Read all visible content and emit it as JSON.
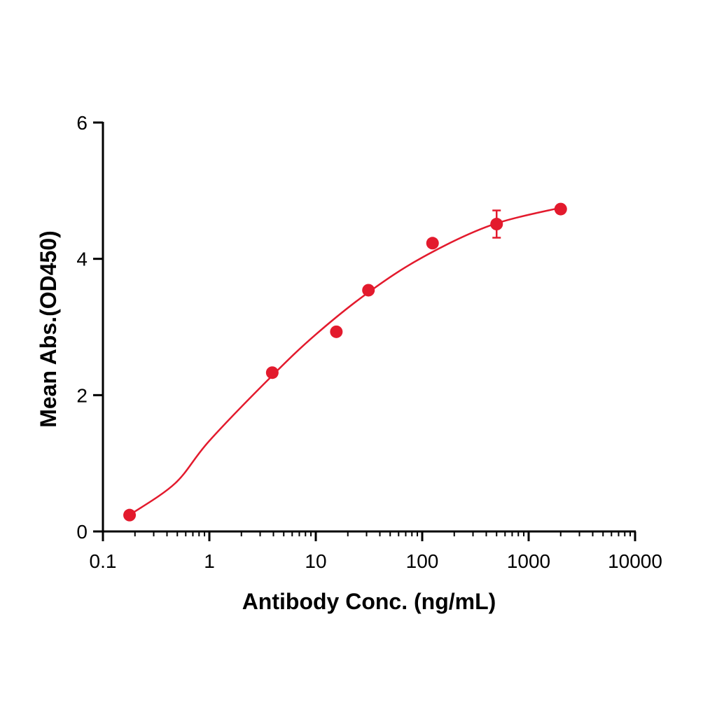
{
  "chart_data": {
    "type": "scatter",
    "title": "",
    "xlabel": "Antibody Conc. (ng/mL)",
    "ylabel": "Mean Abs.(OD450)",
    "xscale": "log",
    "xlim": [
      0.1,
      10000
    ],
    "ylim": [
      0,
      6
    ],
    "xticks": [
      "0.1",
      "1",
      "10",
      "100",
      "1000",
      "10000"
    ],
    "xtick_values": [
      0.1,
      1,
      10,
      100,
      1000,
      10000
    ],
    "yticks": [
      "0",
      "2",
      "4",
      "6"
    ],
    "ytick_values": [
      0,
      2,
      4,
      6
    ],
    "grid": false,
    "color": "#e31a2d",
    "series": [
      {
        "name": "Mean Abs.",
        "x": [
          0.178,
          3.9,
          15.6,
          31.25,
          125,
          500,
          2000
        ],
        "y": [
          0.24,
          2.33,
          2.93,
          3.54,
          4.23,
          4.51,
          4.73
        ],
        "error": [
          0,
          0,
          0,
          0,
          0,
          0.2,
          0
        ]
      }
    ],
    "fit_curve": {
      "x": [
        0.19,
        0.48,
        1.0,
        3.86,
        10,
        30.7,
        100,
        437,
        1977
      ],
      "y": [
        0.27,
        0.71,
        1.33,
        2.28,
        2.89,
        3.5,
        4.02,
        4.49,
        4.75
      ]
    }
  }
}
